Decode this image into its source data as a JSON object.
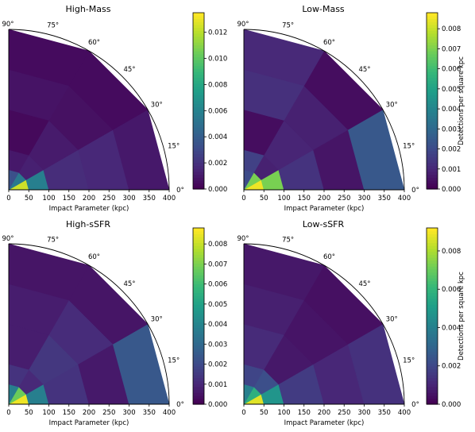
{
  "colormap": "viridis",
  "angle_ticks": [
    "0°",
    "15°",
    "30°",
    "45°",
    "60°",
    "75°",
    "90°"
  ],
  "radial_bins_kpc": [
    0,
    50,
    100,
    200,
    300,
    400
  ],
  "angle_bins_deg": [
    0,
    30,
    60,
    90
  ],
  "chart_data": [
    {
      "type": "heatmap",
      "title": "High-Mass",
      "xlabel": "Impact Parameter (kpc)",
      "x_ticks": [
        "0",
        "50",
        "100",
        "150",
        "200",
        "250",
        "300",
        "350",
        "400"
      ],
      "xlim": [
        0,
        400
      ],
      "colorbar": {
        "label": "",
        "ticks": [
          "0.000",
          "0.002",
          "0.004",
          "0.006",
          "0.008",
          "0.010",
          "0.012"
        ],
        "range": [
          0,
          0.0135
        ]
      },
      "values": [
        [
          0.0125,
          0.0055,
          0.0033
        ],
        [
          0.0058,
          0.0012,
          0.0009
        ],
        [
          0.0017,
          0.001,
          0.0003
        ],
        [
          0.0015,
          0.0006,
          0.0007
        ],
        [
          0.0009,
          0.0004,
          0.0004
        ]
      ]
    },
    {
      "type": "heatmap",
      "title": "Low-Mass",
      "xlabel": "Impact Parameter (kpc)",
      "x_ticks": [
        "0",
        "50",
        "100",
        "150",
        "200",
        "250",
        "300",
        "350",
        "400"
      ],
      "xlim": [
        0,
        400
      ],
      "colorbar": {
        "label": "Detections per square kpc",
        "ticks": [
          "0.000",
          "0.001",
          "0.002",
          "0.003",
          "0.004",
          "0.005",
          "0.006",
          "0.007",
          "0.008"
        ],
        "range": [
          0,
          0.0088
        ]
      },
      "values": [
        [
          0.0086,
          0.007,
          0.002
        ],
        [
          0.007,
          0.0008,
          0.0017
        ],
        [
          0.0013,
          0.0009,
          0.0003
        ],
        [
          0.0005,
          0.0008,
          0.0012
        ],
        [
          0.0024,
          0.0003,
          0.001
        ]
      ]
    },
    {
      "type": "heatmap",
      "title": "High-sSFR",
      "xlabel": "Impact Parameter (kpc)",
      "x_ticks": [
        "0",
        "50",
        "100",
        "150",
        "200",
        "250",
        "300",
        "350",
        "400"
      ],
      "xlim": [
        0,
        400
      ],
      "colorbar": {
        "label": "",
        "ticks": [
          "0.000",
          "0.001",
          "0.002",
          "0.003",
          "0.004",
          "0.005",
          "0.006",
          "0.007",
          "0.008"
        ],
        "range": [
          0,
          0.0088
        ]
      },
      "values": [
        [
          0.0086,
          0.0068,
          0.0038
        ],
        [
          0.0038,
          0.001,
          0.0013
        ],
        [
          0.0013,
          0.0014,
          0.0007
        ],
        [
          0.0006,
          0.0011,
          0.0007
        ],
        [
          0.0024,
          0.0005,
          0.0005
        ]
      ]
    },
    {
      "type": "heatmap",
      "title": "Low-sSFR",
      "xlabel": "Impact Parameter (kpc)",
      "x_ticks": [
        "0",
        "50",
        "100",
        "150",
        "200",
        "250",
        "300",
        "350",
        "400"
      ],
      "xlim": [
        0,
        400
      ],
      "colorbar": {
        "label": "Detections per square kpc",
        "ticks": [
          "0.000",
          "0.002",
          "0.004",
          "0.006",
          "0.008"
        ],
        "range": [
          0,
          0.0092
        ]
      },
      "values": [
        [
          0.0088,
          0.0058,
          0.004
        ],
        [
          0.0048,
          0.0022,
          0.0019
        ],
        [
          0.0016,
          0.0006,
          0.0011
        ],
        [
          0.001,
          0.0005,
          0.0008
        ],
        [
          0.0013,
          0.0004,
          0.0006
        ]
      ]
    }
  ]
}
